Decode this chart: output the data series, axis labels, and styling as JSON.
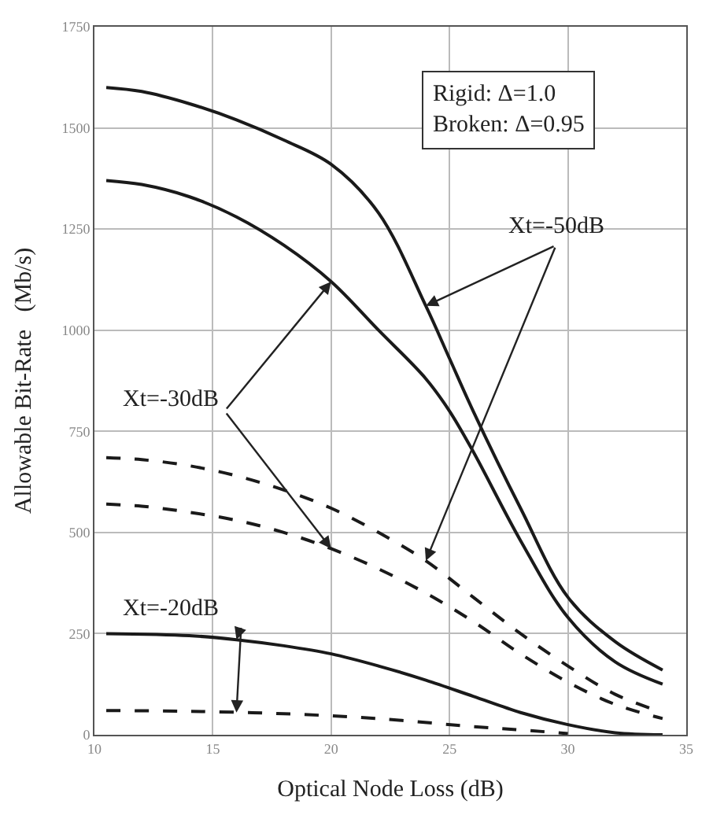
{
  "chart_data": {
    "type": "line",
    "xlabel": "Optical Node Loss (dB)",
    "ylabel": "Allowable Bit-Rate   (Mb/s)",
    "xlim": [
      10,
      35
    ],
    "xticks": [
      10,
      15,
      20,
      25,
      30,
      35
    ],
    "ylim": [
      0,
      1750
    ],
    "yticks": [
      0,
      250,
      500,
      750,
      1000,
      1250,
      1500,
      1750
    ],
    "grid": true,
    "legend": false,
    "marker": "none",
    "series": [
      {
        "color": "#1a1a1a",
        "line_style": "solid",
        "x": [
          10.5,
          12,
          14,
          16,
          18,
          20,
          22,
          24,
          25,
          26,
          28,
          30,
          32,
          34
        ],
        "values": [
          1600,
          1590,
          1560,
          1520,
          1470,
          1410,
          1290,
          1060,
          930,
          800,
          560,
          340,
          230,
          160
        ]
      },
      {
        "color": "#1a1a1a",
        "line_style": "solid",
        "x": [
          10.5,
          12,
          14,
          16,
          18,
          20,
          22,
          24,
          25,
          26,
          28,
          30,
          32,
          34
        ],
        "values": [
          1370,
          1360,
          1330,
          1280,
          1210,
          1120,
          1000,
          880,
          800,
          700,
          480,
          290,
          180,
          125
        ]
      },
      {
        "color": "#1a1a1a",
        "line_style": "dashed",
        "x": [
          10.5,
          12,
          14,
          16,
          18,
          20,
          22,
          24,
          26,
          28,
          30,
          32,
          34
        ],
        "values": [
          685,
          680,
          665,
          640,
          605,
          560,
          500,
          430,
          340,
          250,
          170,
          100,
          55
        ]
      },
      {
        "color": "#1a1a1a",
        "line_style": "dashed",
        "x": [
          10.5,
          12,
          14,
          16,
          18,
          20,
          22,
          24,
          26,
          28,
          30,
          32,
          34
        ],
        "values": [
          570,
          565,
          550,
          530,
          500,
          460,
          410,
          350,
          280,
          200,
          130,
          75,
          40
        ]
      },
      {
        "color": "#1a1a1a",
        "line_style": "solid",
        "x": [
          10.5,
          14,
          16,
          18,
          20,
          22,
          24,
          26,
          28,
          30,
          32,
          34
        ],
        "values": [
          250,
          245,
          235,
          220,
          200,
          170,
          135,
          95,
          55,
          25,
          5,
          0
        ]
      },
      {
        "color": "#1a1a1a",
        "line_style": "dashed",
        "x": [
          10.5,
          14,
          18,
          22,
          26,
          28,
          30
        ],
        "values": [
          60,
          58,
          52,
          40,
          20,
          12,
          3
        ]
      }
    ],
    "annotations": [
      "Rigid: Δ=1.0\nBroken: Δ=0.95",
      {
        "text": "Xt=-50dB",
        "x": 24,
        "y": 1060
      },
      {
        "text": "Xt=-30dB",
        "x": 20,
        "y": 1120
      },
      {
        "text": "Xt=-20dB",
        "x": 16,
        "y": 235
      }
    ]
  }
}
